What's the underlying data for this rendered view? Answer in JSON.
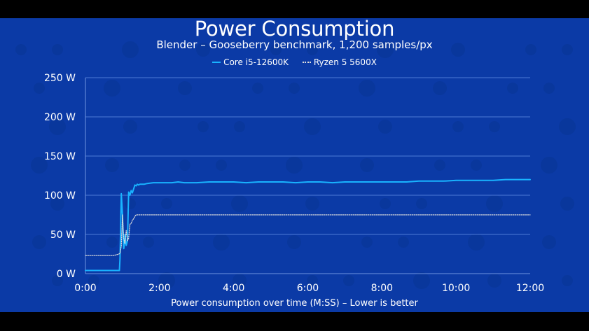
{
  "chart_data": {
    "type": "line",
    "title": "Power Consumption",
    "subtitle": "Blender – Gooseberry benchmark, 1,200 samples/px",
    "xlabel": "Power consumption over time (M:SS) – Lower is better",
    "ylabel": "",
    "x_unit": "seconds",
    "xlim": [
      0,
      720
    ],
    "ylim": [
      0,
      250
    ],
    "x_ticks": [
      {
        "value": 0,
        "label": "0:00"
      },
      {
        "value": 120,
        "label": "2:00"
      },
      {
        "value": 240,
        "label": "4:00"
      },
      {
        "value": 360,
        "label": "6:00"
      },
      {
        "value": 480,
        "label": "8:00"
      },
      {
        "value": 600,
        "label": "10:00"
      },
      {
        "value": 720,
        "label": "12:00"
      }
    ],
    "y_ticks": [
      {
        "value": 0,
        "label": "0 W"
      },
      {
        "value": 50,
        "label": "50 W"
      },
      {
        "value": 100,
        "label": "100 W"
      },
      {
        "value": 150,
        "label": "150 W"
      },
      {
        "value": 200,
        "label": "200 W"
      },
      {
        "value": 250,
        "label": "250 W"
      }
    ],
    "grid": true,
    "legend_position": "top-center",
    "series": [
      {
        "name": "Core i5-12600K",
        "color": "#19b3ff",
        "style": "solid",
        "x": [
          0,
          30,
          55,
          56,
          58,
          60,
          61,
          62,
          63,
          64,
          66,
          68,
          70,
          72,
          73,
          74,
          76,
          78,
          80,
          82,
          84,
          86,
          88,
          90,
          95,
          100,
          110,
          120,
          140,
          150,
          160,
          180,
          200,
          220,
          240,
          260,
          280,
          300,
          320,
          340,
          360,
          380,
          400,
          420,
          440,
          460,
          480,
          500,
          520,
          540,
          560,
          580,
          600,
          620,
          640,
          660,
          680,
          700,
          720
        ],
        "y": [
          4,
          4,
          4,
          20,
          102,
          75,
          45,
          32,
          38,
          50,
          36,
          42,
          104,
          100,
          103,
          106,
          103,
          108,
          113,
          112,
          114,
          113,
          114,
          114,
          114,
          115,
          116,
          116,
          116,
          117,
          116,
          116,
          117,
          117,
          117,
          116,
          117,
          117,
          117,
          116,
          117,
          117,
          116,
          117,
          117,
          117,
          117,
          117,
          117,
          118,
          118,
          118,
          119,
          119,
          119,
          119,
          120,
          120,
          120
        ]
      },
      {
        "name": "Ryzen 5 5600X",
        "color": "#dddddd",
        "style": "dotted",
        "x": [
          0,
          45,
          50,
          54,
          56,
          58,
          60,
          62,
          64,
          66,
          68,
          70,
          72,
          74,
          76,
          78,
          80,
          82,
          90,
          120,
          240,
          360,
          480,
          600,
          720
        ],
        "y": [
          23,
          23,
          24,
          25,
          26,
          35,
          75,
          45,
          38,
          55,
          42,
          45,
          63,
          64,
          68,
          70,
          73,
          75,
          75,
          75,
          75,
          75,
          75,
          75,
          75
        ]
      }
    ]
  }
}
